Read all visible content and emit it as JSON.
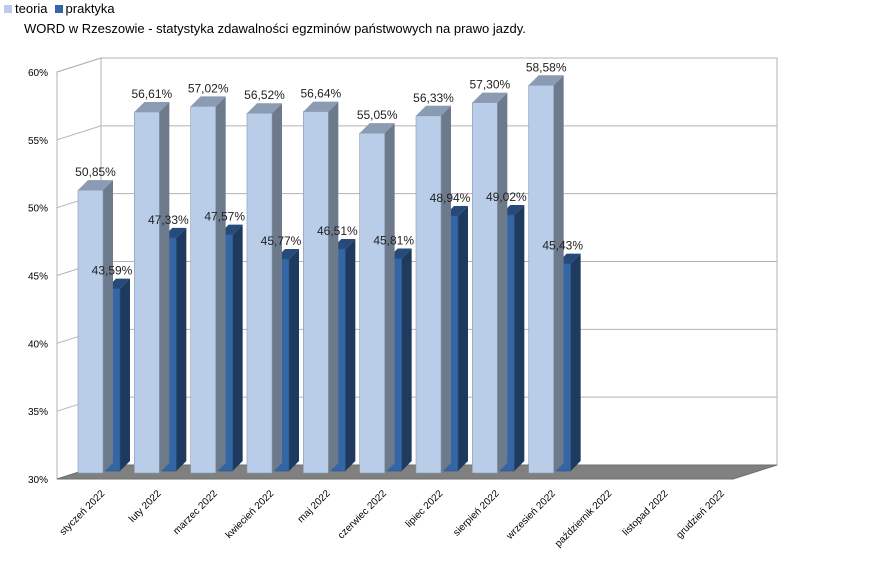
{
  "chart_data": {
    "type": "bar",
    "title": "WORD w Rzeszowie - statystyka zdawalności egzminów państwowych na prawo jazdy.",
    "categories": [
      "styczeń 2022",
      "luty 2022",
      "marzec 2022",
      "kwiecień 2022",
      "maj 2022",
      "czerwiec 2022",
      "lipiec 2022",
      "sierpień 2022",
      "wrzesień 2022",
      "październik 2022",
      "listopad 2022",
      "grudzień 2022"
    ],
    "series": [
      {
        "name": "teoria",
        "color": "#b9cde8",
        "values": [
          50.85,
          56.61,
          57.02,
          56.52,
          56.64,
          55.05,
          56.33,
          57.3,
          58.58,
          null,
          null,
          null
        ],
        "labels": [
          "50,85%",
          "56,61%",
          "57,02%",
          "56,52%",
          "56,64%",
          "55,05%",
          "56,33%",
          "57,30%",
          "58,58%",
          "",
          "",
          ""
        ]
      },
      {
        "name": "praktyka",
        "color": "#3465a4",
        "values": [
          43.59,
          47.33,
          47.57,
          45.77,
          46.51,
          45.81,
          48.94,
          49.02,
          45.43,
          null,
          null,
          null
        ],
        "labels": [
          "43,59%",
          "47,33%",
          "47,57%",
          "45,77%",
          "46,51%",
          "45,81%",
          "48,94%",
          "49,02%",
          "45,43%",
          "",
          "",
          ""
        ]
      }
    ],
    "xlabel": "",
    "ylabel": "",
    "ylim": [
      30,
      60
    ],
    "yticks": [
      "30%",
      "35%",
      "40%",
      "45%",
      "50%",
      "55%",
      "60%"
    ],
    "grid": true,
    "legend": "top-left",
    "three_d": true
  }
}
